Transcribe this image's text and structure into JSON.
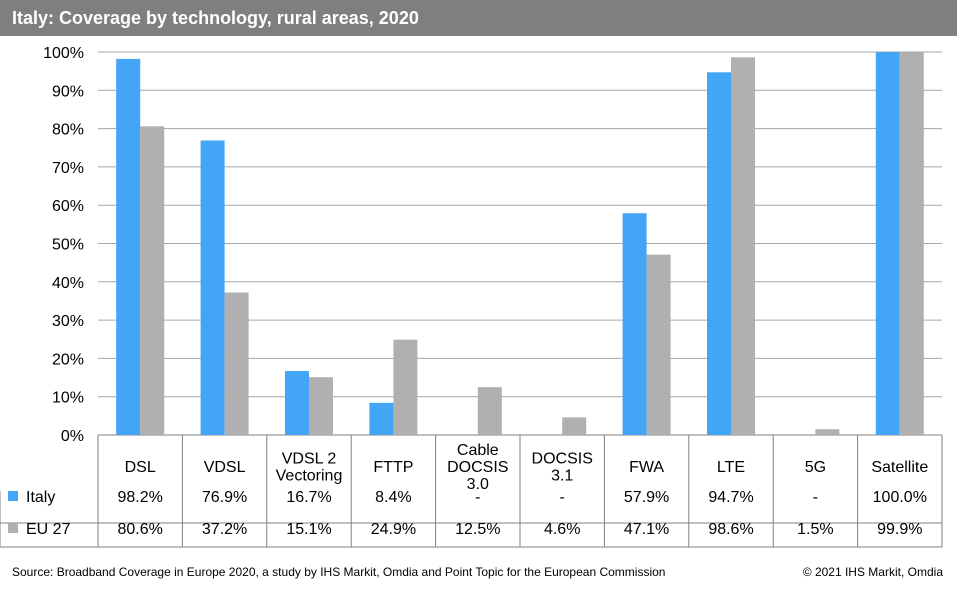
{
  "title": "Italy: Coverage by technology, rural areas, 2020",
  "footer": {
    "source": "Source: Broadband Coverage in Europe 2020, a study by IHS Markit, Omdia and Point Topic for the European Commission",
    "copyright": "© 2021 IHS Markit, Omdia"
  },
  "colors": {
    "italy": "#42a5f5",
    "eu27": "#b0b0b0",
    "title_bg": "#7f7f7f"
  },
  "chart_data": {
    "type": "bar",
    "categories": [
      [
        "DSL"
      ],
      [
        "VDSL"
      ],
      [
        "VDSL 2",
        "Vectoring"
      ],
      [
        "FTTP"
      ],
      [
        "Cable",
        "DOCSIS",
        "3.0"
      ],
      [
        "DOCSIS",
        "3.1"
      ],
      [
        "FWA"
      ],
      [
        "LTE"
      ],
      [
        "5G"
      ],
      [
        "Satellite"
      ]
    ],
    "ylim": [
      0,
      100
    ],
    "yticks": [
      "0%",
      "10%",
      "20%",
      "30%",
      "40%",
      "50%",
      "60%",
      "70%",
      "80%",
      "90%",
      "100%"
    ],
    "grid": true,
    "series": [
      {
        "name": "Italy",
        "values": [
          98.2,
          76.9,
          16.7,
          8.4,
          null,
          null,
          57.9,
          94.7,
          null,
          100.0
        ],
        "labels": [
          "98.2%",
          "76.9%",
          "16.7%",
          "8.4%",
          "-",
          "-",
          "57.9%",
          "94.7%",
          "-",
          "100.0%"
        ]
      },
      {
        "name": "EU 27",
        "values": [
          80.6,
          37.2,
          15.1,
          24.9,
          12.5,
          4.6,
          47.1,
          98.6,
          1.5,
          99.9
        ],
        "labels": [
          "80.6%",
          "37.2%",
          "15.1%",
          "24.9%",
          "12.5%",
          "4.6%",
          "47.1%",
          "98.6%",
          "1.5%",
          "99.9%"
        ]
      }
    ]
  }
}
